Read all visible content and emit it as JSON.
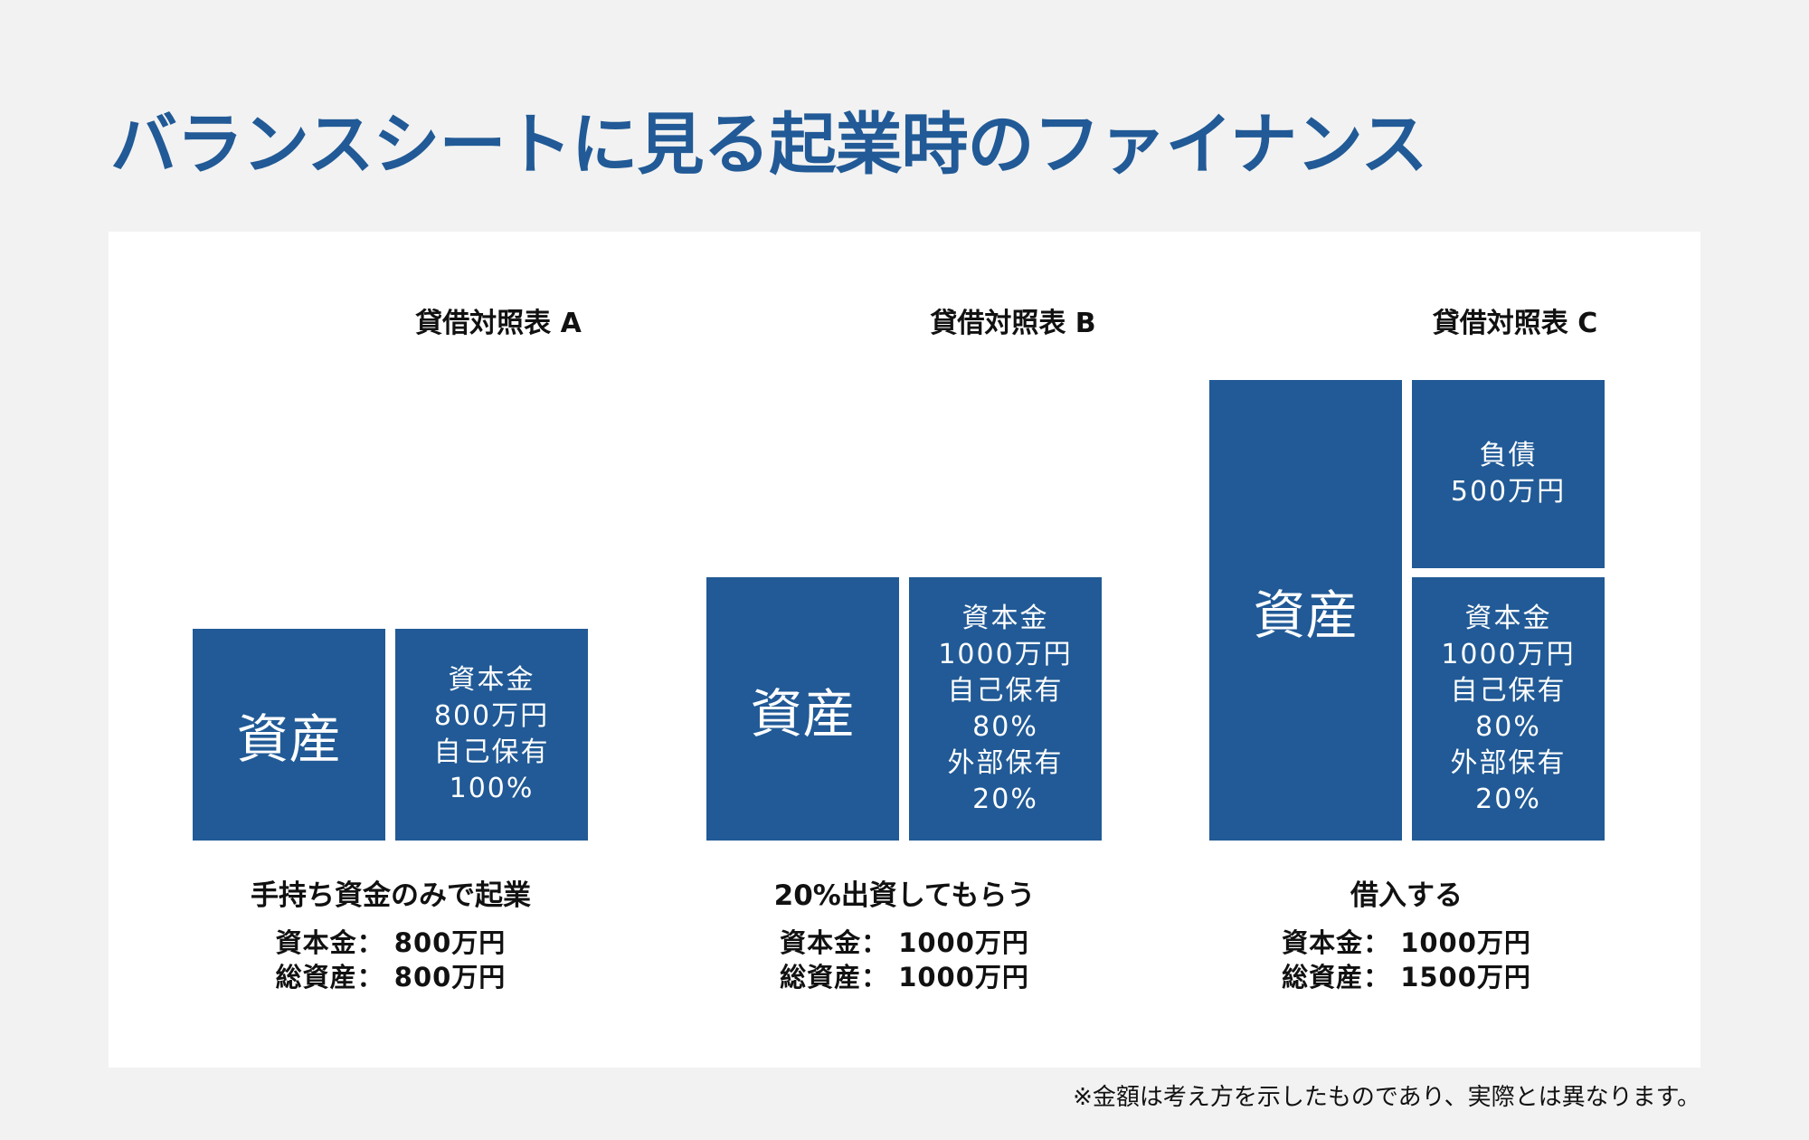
{
  "title": "バランスシートに見る起業時のファイナンス",
  "sheets": [
    {
      "label": "貸借対照表 A",
      "asset": "資産",
      "capital": [
        "資本金",
        "800万円",
        "自己保有",
        "100%"
      ],
      "caption": "手持ち資金のみで起業",
      "summary": [
        "資本金： 800万円",
        "総資産： 800万円"
      ]
    },
    {
      "label": "貸借対照表 B",
      "asset": "資産",
      "capital": [
        "資本金",
        "1000万円",
        "自己保有",
        "80%",
        "外部保有",
        "20%"
      ],
      "caption": "20%出資してもらう",
      "summary": [
        "資本金： 1000万円",
        "総資産： 1000万円"
      ]
    },
    {
      "label": "貸借対照表 C",
      "asset": "資産",
      "liability": [
        "負債",
        "500万円"
      ],
      "capital": [
        "資本金",
        "1000万円",
        "自己保有",
        "80%",
        "外部保有",
        "20%"
      ],
      "caption": "借入する",
      "summary": [
        "資本金： 1000万円",
        "総資産： 1500万円"
      ]
    }
  ],
  "footnote": "※金額は考え方を示したものであり、実際とは異なります。",
  "colors": {
    "title": "#215a96",
    "box": "#215a96",
    "background": "#f2f2f2",
    "panel": "#ffffff"
  }
}
